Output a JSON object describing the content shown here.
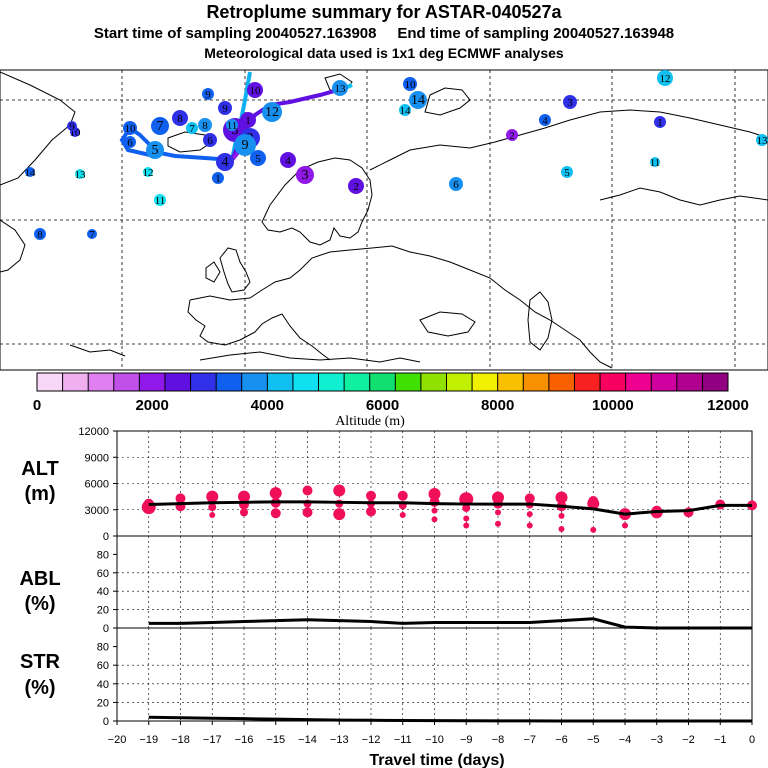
{
  "header": {
    "title": "Retroplume summary for ASTAR-040527a",
    "subtitle_left": "Start time of sampling 20040527.163908",
    "subtitle_right": "End time of sampling 20040527.163948",
    "met_note": "Meteorological data used is 1x1 deg ECMWF analyses"
  },
  "colorbar": {
    "title": "Altitude (m)",
    "ticks": [
      "0",
      "2000",
      "4000",
      "6000",
      "8000",
      "10000",
      "12000"
    ],
    "colors": [
      "#f8d8f8",
      "#f0b0f0",
      "#e080f0",
      "#c050e8",
      "#9018e8",
      "#6010e0",
      "#3030e8",
      "#1060f0",
      "#1890f0",
      "#10c0f0",
      "#10e0f0",
      "#10f0d0",
      "#10f0a0",
      "#10e070",
      "#40e000",
      "#90e000",
      "#c0f000",
      "#f0f000",
      "#f8c000",
      "#f89000",
      "#f86000",
      "#f82020",
      "#f80060",
      "#f00090",
      "#d000a0",
      "#b00090",
      "#900080"
    ]
  },
  "map": {
    "trajectory_labels": [
      {
        "text": "10",
        "altitude_m": 3200
      },
      {
        "text": "9",
        "altitude_m": 3300
      },
      {
        "text": "8",
        "altitude_m": 3400
      },
      {
        "text": "7",
        "altitude_m": 3500
      },
      {
        "text": "6",
        "altitude_m": 3600
      },
      {
        "text": "5",
        "altitude_m": 3700
      },
      {
        "text": "4",
        "altitude_m": 2700
      },
      {
        "text": "3",
        "altitude_m": 2300
      },
      {
        "text": "2",
        "altitude_m": 2500
      },
      {
        "text": "1",
        "altitude_m": 3000
      },
      {
        "text": "11",
        "altitude_m": 4400
      },
      {
        "text": "12",
        "altitude_m": 4200
      },
      {
        "text": "13",
        "altitude_m": 4000
      },
      {
        "text": "14",
        "altitude_m": 3800
      }
    ]
  },
  "chart_data": [
    {
      "type": "scatter",
      "panel": "ALT",
      "ylabel": "ALT\n(m)",
      "yticks": [
        "12000",
        "9000",
        "6000",
        "3000",
        "0"
      ],
      "ylim": [
        0,
        12000
      ],
      "xlim": [
        -20,
        0
      ],
      "mean_line": [
        [
          -19,
          3600
        ],
        [
          -18,
          3700
        ],
        [
          -17,
          3800
        ],
        [
          -16,
          3850
        ],
        [
          -15,
          3900
        ],
        [
          -14,
          3900
        ],
        [
          -13,
          3850
        ],
        [
          -12,
          3800
        ],
        [
          -11,
          3800
        ],
        [
          -10,
          3700
        ],
        [
          -9,
          3650
        ],
        [
          -8,
          3650
        ],
        [
          -7,
          3650
        ],
        [
          -6,
          3400
        ],
        [
          -5,
          3100
        ],
        [
          -4,
          2500
        ],
        [
          -3,
          2800
        ],
        [
          -2,
          2900
        ],
        [
          -1,
          3500
        ],
        [
          0,
          3500
        ]
      ],
      "clusters": [
        {
          "x": -19,
          "points": [
            [
              3300,
              7
            ],
            [
              3700,
              5
            ]
          ]
        },
        {
          "x": -18,
          "points": [
            [
              3400,
              5
            ],
            [
              4300,
              5
            ]
          ]
        },
        {
          "x": -17,
          "points": [
            [
              2400,
              3
            ],
            [
              3300,
              4
            ],
            [
              4500,
              6
            ]
          ]
        },
        {
          "x": -16,
          "points": [
            [
              2700,
              4
            ],
            [
              3600,
              5
            ],
            [
              4500,
              6
            ]
          ]
        },
        {
          "x": -15,
          "points": [
            [
              2600,
              5
            ],
            [
              3800,
              5
            ],
            [
              4900,
              6
            ]
          ]
        },
        {
          "x": -14,
          "points": [
            [
              2700,
              5
            ],
            [
              3700,
              4
            ],
            [
              5200,
              5
            ]
          ]
        },
        {
          "x": -13,
          "points": [
            [
              2500,
              6
            ],
            [
              3700,
              4
            ],
            [
              5200,
              6
            ]
          ]
        },
        {
          "x": -12,
          "points": [
            [
              2800,
              5
            ],
            [
              3700,
              4
            ],
            [
              4600,
              5
            ]
          ]
        },
        {
          "x": -11,
          "points": [
            [
              2400,
              3
            ],
            [
              3500,
              4
            ],
            [
              4600,
              5
            ]
          ]
        },
        {
          "x": -10,
          "points": [
            [
              1900,
              3
            ],
            [
              2900,
              3
            ],
            [
              3900,
              5
            ],
            [
              4800,
              6
            ]
          ]
        },
        {
          "x": -9,
          "points": [
            [
              1200,
              3
            ],
            [
              2000,
              3
            ],
            [
              3200,
              4
            ],
            [
              4200,
              7
            ]
          ]
        },
        {
          "x": -8,
          "points": [
            [
              1400,
              3
            ],
            [
              2700,
              3
            ],
            [
              3700,
              5
            ],
            [
              4400,
              6
            ]
          ]
        },
        {
          "x": -7,
          "points": [
            [
              1200,
              3
            ],
            [
              2500,
              3
            ],
            [
              3600,
              4
            ],
            [
              4300,
              5
            ]
          ]
        },
        {
          "x": -6,
          "points": [
            [
              800,
              3
            ],
            [
              2300,
              3
            ],
            [
              3400,
              5
            ],
            [
              4400,
              6
            ]
          ]
        },
        {
          "x": -5,
          "points": [
            [
              700,
              3
            ],
            [
              3700,
              6
            ],
            [
              4000,
              5
            ]
          ]
        },
        {
          "x": -4,
          "points": [
            [
              1200,
              3
            ],
            [
              2500,
              6
            ]
          ]
        },
        {
          "x": -3,
          "points": [
            [
              2700,
              6
            ],
            [
              2900,
              5
            ]
          ]
        },
        {
          "x": -2,
          "points": [
            [
              2700,
              5
            ]
          ]
        },
        {
          "x": -1,
          "points": [
            [
              3600,
              5
            ]
          ]
        },
        {
          "x": 0,
          "points": [
            [
              3500,
              5
            ]
          ]
        }
      ]
    },
    {
      "type": "line",
      "panel": "ABL",
      "ylabel": "ABL\n(%)",
      "yticks": [
        "80",
        "60",
        "40",
        "20",
        "0"
      ],
      "ylim": [
        0,
        100
      ],
      "x": [
        -19,
        -18,
        -17,
        -16,
        -15,
        -14,
        -13,
        -12,
        -11,
        -10,
        -9,
        -8,
        -7,
        -6,
        -5,
        -4,
        -3,
        -2,
        -1,
        0
      ],
      "values": [
        5,
        5,
        6,
        7,
        8,
        9,
        8,
        7,
        5,
        6,
        6,
        6,
        6,
        8,
        10,
        1,
        0,
        0,
        0,
        0
      ]
    },
    {
      "type": "line",
      "panel": "STR",
      "ylabel": "STR\n(%)",
      "yticks": [
        "80",
        "60",
        "40",
        "20",
        "0"
      ],
      "ylim": [
        0,
        100
      ],
      "x": [
        -19,
        -18,
        -17,
        -16,
        -15,
        -14,
        -13,
        -12,
        -11,
        -10,
        -9,
        -8,
        -7,
        -6,
        -5,
        -4,
        -3,
        -2,
        -1,
        0
      ],
      "values": [
        4,
        3.5,
        3,
        2.5,
        2,
        1.5,
        1,
        0.8,
        0.6,
        0.4,
        0.3,
        0.2,
        0.1,
        0,
        0,
        0,
        0,
        0,
        0,
        0
      ]
    }
  ],
  "xaxis": {
    "ticks": [
      "−20",
      "−19",
      "−18",
      "−17",
      "−16",
      "−15",
      "−14",
      "−13",
      "−12",
      "−11",
      "−10",
      "−9",
      "−8",
      "−7",
      "−6",
      "−5",
      "−4",
      "−3",
      "−2",
      "−1",
      "0"
    ],
    "label": "Travel time (days)"
  }
}
